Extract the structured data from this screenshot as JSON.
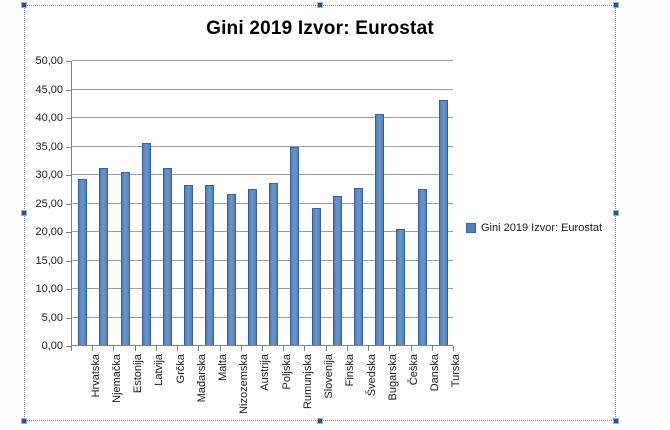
{
  "chart": {
    "title": "Gini 2019 Izvor: Eurostat",
    "colors": {
      "bar_fill": "#4F81BD",
      "bar_fill_light": "#6e95c8",
      "bar_border": "#38619A",
      "gridline": "#9C9C9C",
      "axis": "#808080",
      "selection_border": "#6D89AD",
      "selection_handle": "#2E4E7E",
      "title_color": "#000000"
    }
  },
  "chart_data": {
    "type": "bar",
    "title": "Gini 2019 Izvor: Eurostat",
    "categories": [
      "Hrvatska",
      "Njemačka",
      "Estonija",
      "Latvija",
      "Grčka",
      "Mađarska",
      "Malta",
      "Nizozemska",
      "Austrija",
      "Poljska",
      "Rumunjska",
      "Slovenija",
      "Finska",
      "Švedska",
      "Bugarska",
      "Češka",
      "Danska",
      "Turska"
    ],
    "values": [
      29.2,
      31.0,
      30.4,
      35.5,
      31.0,
      28.0,
      28.0,
      26.5,
      27.4,
      28.5,
      34.8,
      24.0,
      26.1,
      27.6,
      40.6,
      20.3,
      27.4,
      43.0
    ],
    "xlabel": "",
    "ylabel": "",
    "ylim": [
      0,
      50
    ],
    "ytick_step": 5,
    "ytick_labels": [
      "0,00",
      "5,00",
      "10,00",
      "15,00",
      "20,00",
      "25,00",
      "30,00",
      "35,00",
      "40,00",
      "45,00",
      "50,00"
    ],
    "grid": true,
    "legend": {
      "position": "right",
      "entries": [
        "Gini 2019 Izvor: Eurostat"
      ]
    }
  }
}
